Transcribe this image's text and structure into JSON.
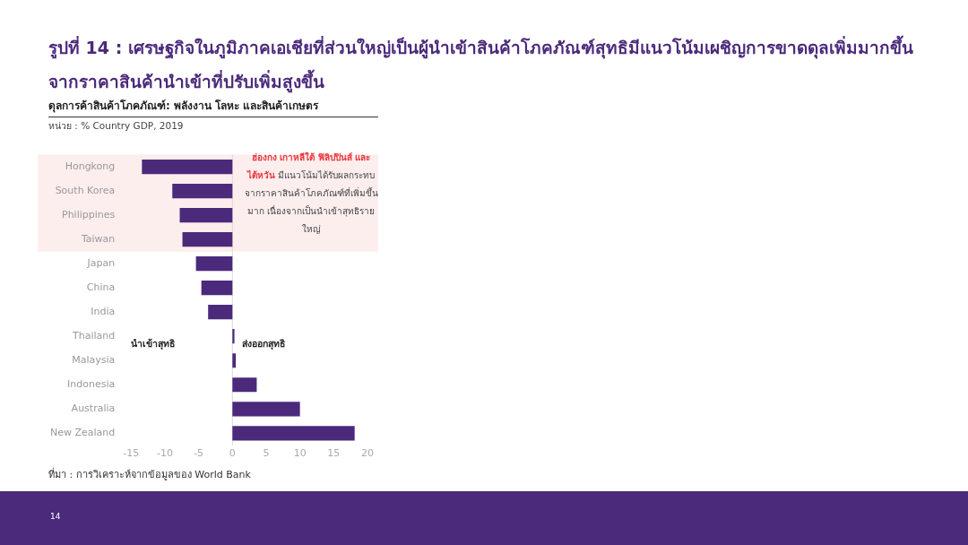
{
  "chart_data": {
    "type": "bar",
    "orientation": "horizontal",
    "title": "รูปที่ 14 : เศรษฐกิจในภูมิภาคเอเชียที่ส่วนใหญ่เป็นผู้นำเข้าสินค้าโภคภัณฑ์สุทธิมีแนวโน้มเผชิญการขาดดุลเพิ่มมากขึ้นจากราคาสินค้านำเข้าที่ปรับเพิ่มสูงขึ้น",
    "subtitle": "ดุลการค้าสินค้าโภคภัณฑ์: พลังงาน โลหะ และสินค้าเกษตร",
    "categories": [
      "Hongkong",
      "South Korea",
      "Philippines",
      "Taiwan",
      "Japan",
      "China",
      "India",
      "Thailand",
      "Malaysia",
      "Indonesia",
      "Australia",
      "New Zealand"
    ],
    "values": [
      -13.4,
      -8.9,
      -7.8,
      -7.4,
      -5.4,
      -4.6,
      -3.6,
      0.3,
      0.5,
      3.6,
      10,
      18.1
    ],
    "color": "#4b2a7b",
    "xlim": [
      -15,
      20
    ],
    "xticks": [
      -15,
      -10,
      -5,
      0,
      5,
      10,
      15,
      20
    ],
    "grid": false,
    "legend": false,
    "ref_lines": [
      {
        "axis": "x",
        "value": 0,
        "color": "#d9d9d9"
      }
    ],
    "bands": [
      {
        "axis": "y",
        "from": "Hongkong",
        "to": "Taiwan",
        "color": "#fdeeee"
      }
    ],
    "annotations": [
      "หน่วย : % Country GDP, 2019",
      "ฮ่องกง เกาหลีใต้ ฟิลิปปินส์ และไต้หวัน",
      "มีแนวโน้มได้รับผลกระทบจากราคาสินค้าโภคภัณฑ์ที่เพิ่มขึ้นมาก เนื่องจากเป็นนำเข้าสุทธิรายใหญ่",
      "นำเข้าสุทธิ",
      "ส่งออกสุทธิ",
      "ที่มา : การวิเคราะห์จากข้อมูลของ World Bank",
      "14"
    ]
  }
}
